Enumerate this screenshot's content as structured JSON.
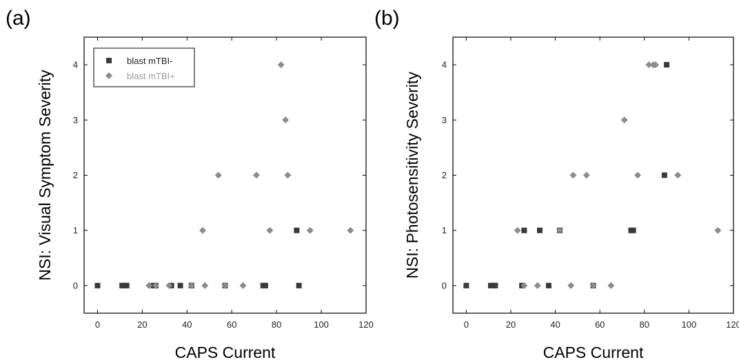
{
  "panels": [
    {
      "label": "(a)",
      "chart_data": {
        "type": "scatter",
        "title": "",
        "xlabel": "CAPS Current",
        "ylabel": "NSI: Visual Symptom Severity",
        "xlim": [
          -6,
          120
        ],
        "ylim": [
          -0.5,
          4.5
        ],
        "xticks": [
          0,
          20,
          40,
          60,
          80,
          100,
          120
        ],
        "yticks": [
          0,
          1,
          2,
          3,
          4
        ],
        "grid": false,
        "legend": {
          "position": "top-left"
        },
        "series": [
          {
            "name": "blast mTBI-",
            "marker": "square",
            "color": "#3a3a3a",
            "points": [
              [
                0,
                0
              ],
              [
                11,
                0
              ],
              [
                12,
                0
              ],
              [
                13,
                0
              ],
              [
                25,
                0
              ],
              [
                26,
                0
              ],
              [
                33,
                0
              ],
              [
                37,
                0
              ],
              [
                42,
                0
              ],
              [
                57,
                0
              ],
              [
                74,
                0
              ],
              [
                75,
                0
              ],
              [
                89,
                1
              ],
              [
                90,
                0
              ]
            ]
          },
          {
            "name": "blast mTBI+",
            "marker": "diamond",
            "color": "#8c8c8c",
            "points": [
              [
                23,
                0
              ],
              [
                26,
                0
              ],
              [
                32,
                0
              ],
              [
                42,
                0
              ],
              [
                48,
                0
              ],
              [
                57,
                0
              ],
              [
                65,
                0
              ],
              [
                47,
                1
              ],
              [
                54,
                2
              ],
              [
                71,
                2
              ],
              [
                77,
                1
              ],
              [
                82,
                4
              ],
              [
                84,
                3
              ],
              [
                85,
                2
              ],
              [
                95,
                1
              ],
              [
                113,
                1
              ]
            ]
          }
        ]
      }
    },
    {
      "label": "(b)",
      "chart_data": {
        "type": "scatter",
        "title": "",
        "xlabel": "CAPS Current",
        "ylabel": "NSI: Photosensitivity Severity",
        "xlim": [
          -6,
          120
        ],
        "ylim": [
          -0.5,
          4.5
        ],
        "xticks": [
          0,
          20,
          40,
          60,
          80,
          100,
          120
        ],
        "yticks": [
          0,
          1,
          2,
          3,
          4
        ],
        "grid": false,
        "legend": {
          "position": "none"
        },
        "series": [
          {
            "name": "blast mTBI-",
            "marker": "square",
            "color": "#3a3a3a",
            "points": [
              [
                0,
                0
              ],
              [
                11,
                0
              ],
              [
                12,
                0
              ],
              [
                13,
                0
              ],
              [
                25,
                0
              ],
              [
                26,
                1
              ],
              [
                33,
                1
              ],
              [
                37,
                0
              ],
              [
                42,
                1
              ],
              [
                57,
                0
              ],
              [
                74,
                1
              ],
              [
                75,
                1
              ],
              [
                89,
                2
              ],
              [
                90,
                4
              ]
            ]
          },
          {
            "name": "blast mTBI+",
            "marker": "diamond",
            "color": "#8c8c8c",
            "points": [
              [
                23,
                1
              ],
              [
                26,
                0
              ],
              [
                32,
                0
              ],
              [
                42,
                1
              ],
              [
                47,
                0
              ],
              [
                48,
                2
              ],
              [
                54,
                2
              ],
              [
                57,
                0
              ],
              [
                65,
                0
              ],
              [
                71,
                3
              ],
              [
                77,
                2
              ],
              [
                82,
                4
              ],
              [
                84,
                4
              ],
              [
                85,
                4
              ],
              [
                95,
                2
              ],
              [
                113,
                1
              ]
            ]
          }
        ]
      }
    }
  ]
}
